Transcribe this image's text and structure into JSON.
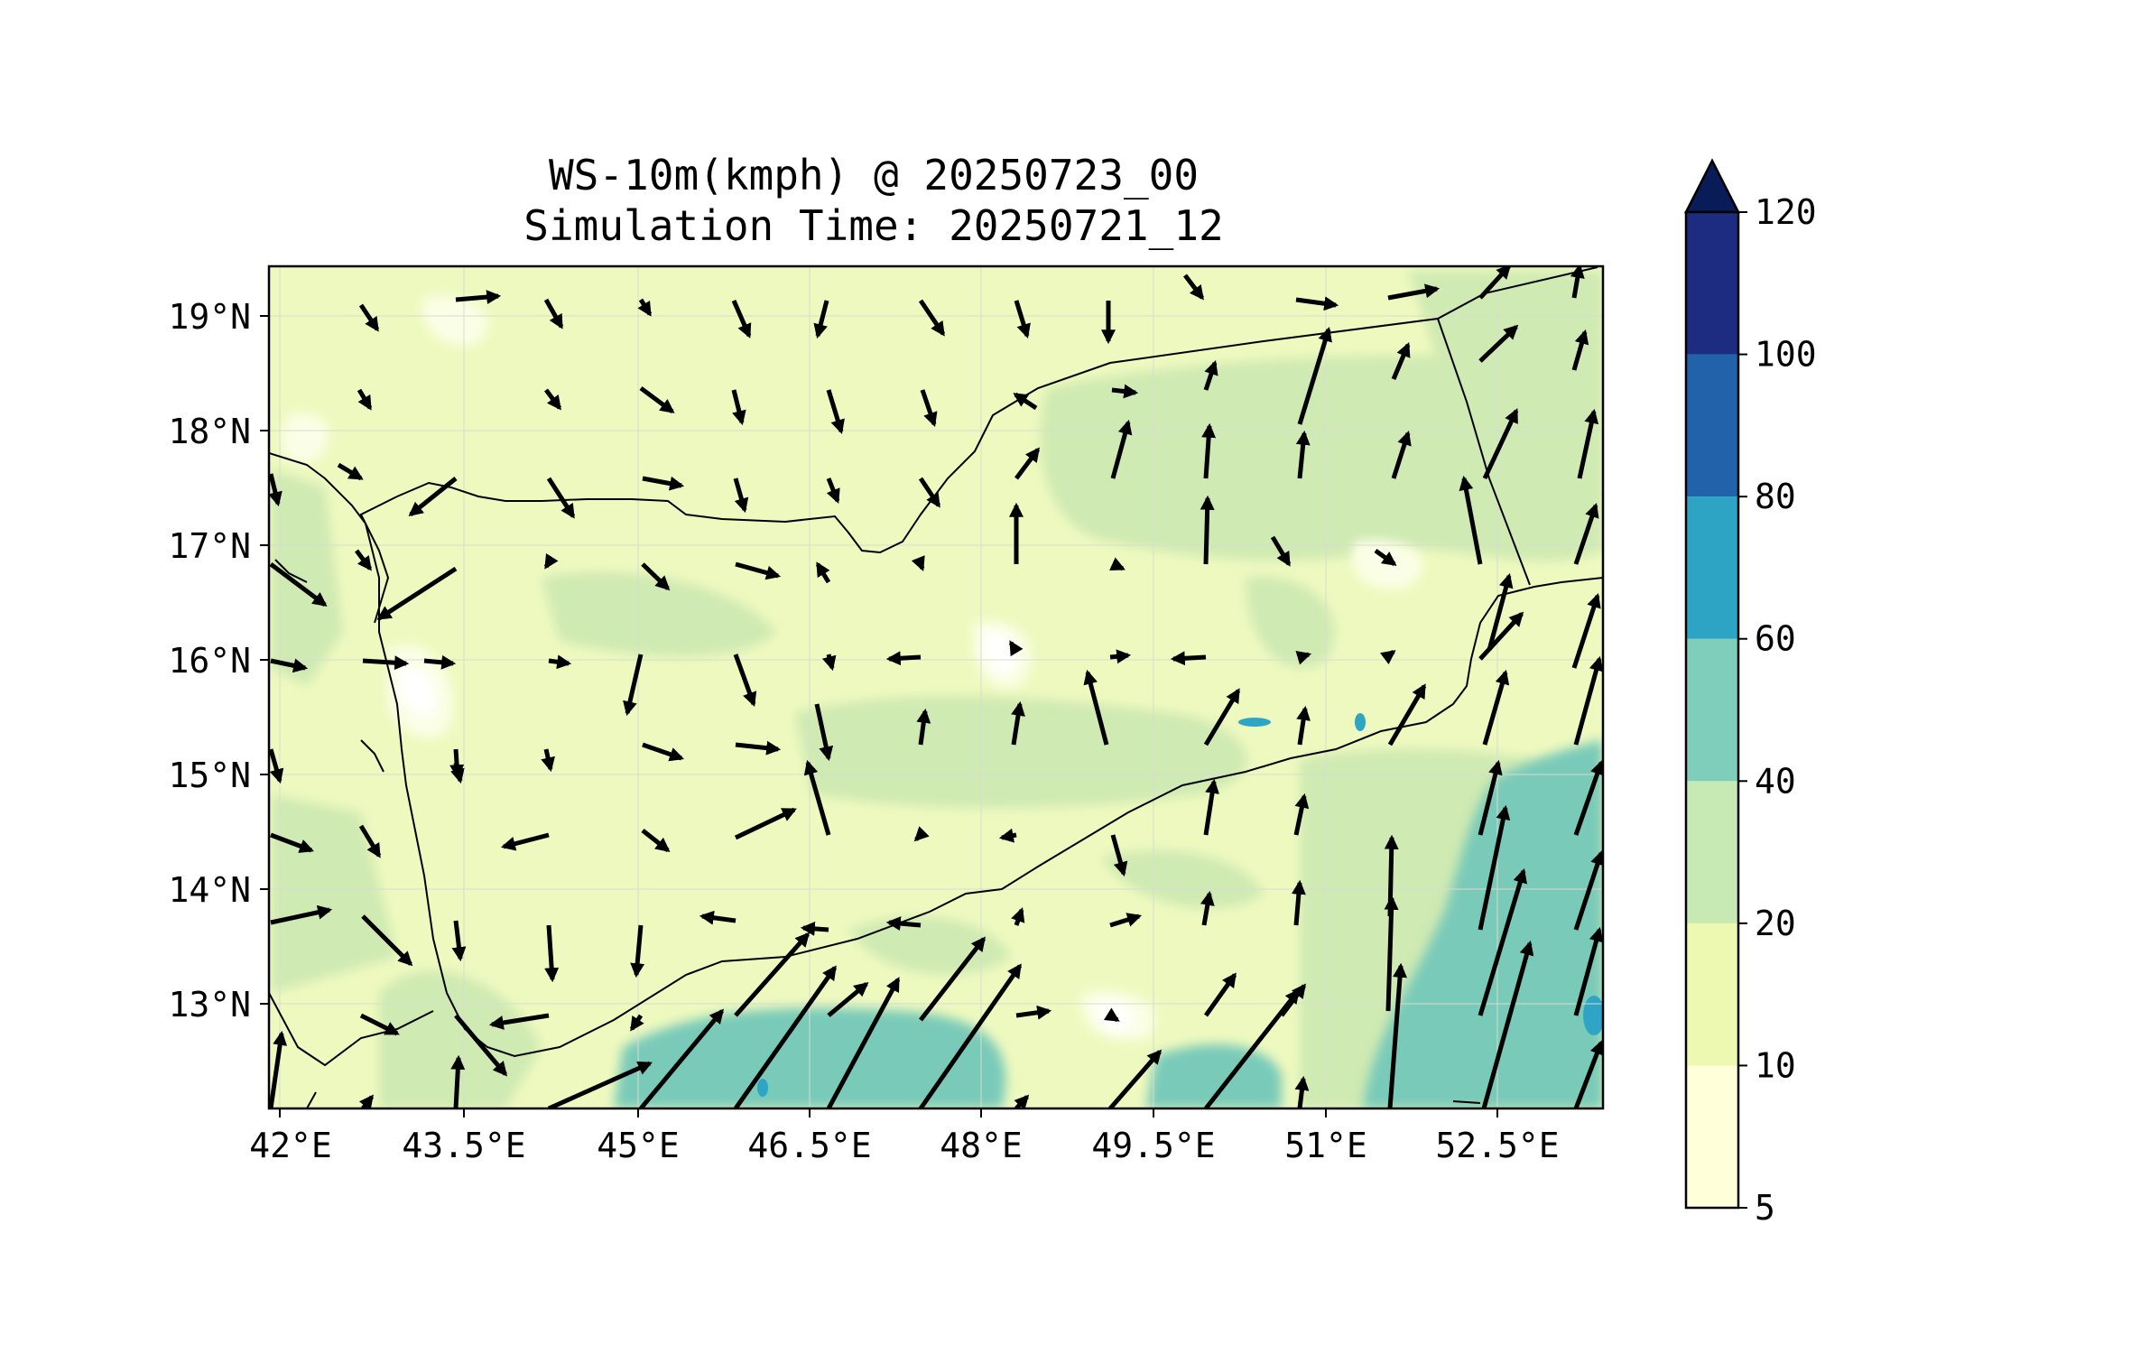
{
  "map": {
    "title_line1": "WS-10m(kmph) @ 20250723_00",
    "title_line2": "Simulation Time: 20250721_12",
    "lon_ticks": [
      "42°E",
      "43.5°E",
      "45°E",
      "46.5°E",
      "48°E",
      "49.5°E",
      "51°E",
      "52.5°E"
    ],
    "lat_ticks": [
      "19°N",
      "18°N",
      "17°N",
      "16°N",
      "15°N",
      "14°N",
      "13°N"
    ],
    "extent": {
      "lon_min": 42.0,
      "lon_max": 53.8,
      "lat_min": 12.1,
      "lat_max": 19.45
    },
    "units": "kmph"
  },
  "colorbar": {
    "levels": [
      "5",
      "10",
      "20",
      "40",
      "60",
      "80",
      "100",
      "120"
    ],
    "colors": [
      "#ffffd9",
      "#edf8b1",
      "#c7e9b4",
      "#7fcdbb",
      "#41b6c4",
      "#1d91c0",
      "#225ea8",
      "#0c2c84"
    ],
    "extend_color": "#081d58"
  },
  "legend_colors": {
    "land_base": "#eef9bf",
    "moderate": "#cfeab2",
    "strong": "#79cab9",
    "very_strong": "#2fa5c5",
    "calm": "#ffffff",
    "arrow": "#000000",
    "borders": "#000000"
  }
}
